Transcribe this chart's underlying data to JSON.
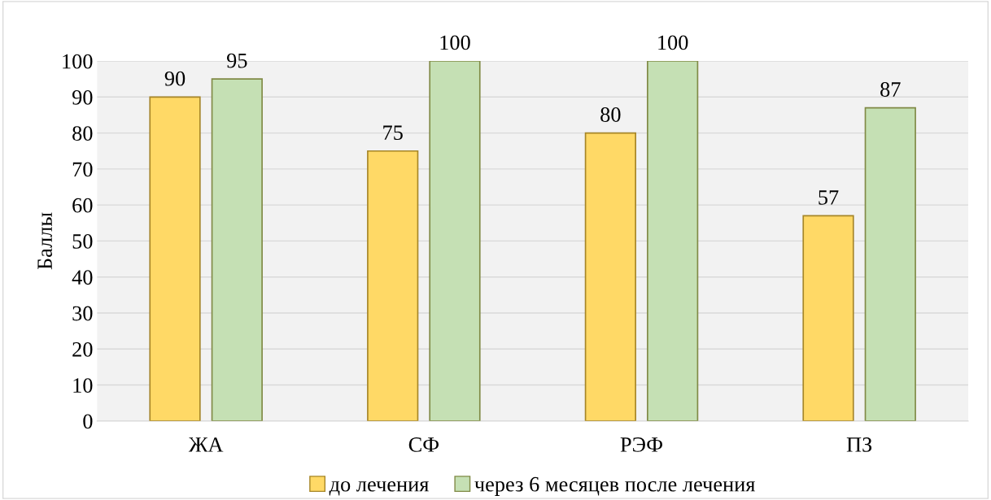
{
  "chart_data": {
    "type": "bar",
    "ylabel": "Баллы",
    "categories": [
      "ЖА",
      "СФ",
      "РЭФ",
      "ПЗ"
    ],
    "series": [
      {
        "name": "до лечения",
        "color": "#ffd966",
        "values": [
          90,
          75,
          80,
          57
        ]
      },
      {
        "name": "через 6 месяцев после лечения",
        "color": "#c5e0b4",
        "values": [
          95,
          100,
          100,
          87
        ]
      }
    ],
    "ylim": [
      0,
      100
    ],
    "yticks": [
      0,
      10,
      20,
      30,
      40,
      50,
      60,
      70,
      80,
      90,
      100
    ],
    "grid": "y",
    "legend": "bottom",
    "data_labels": true
  }
}
